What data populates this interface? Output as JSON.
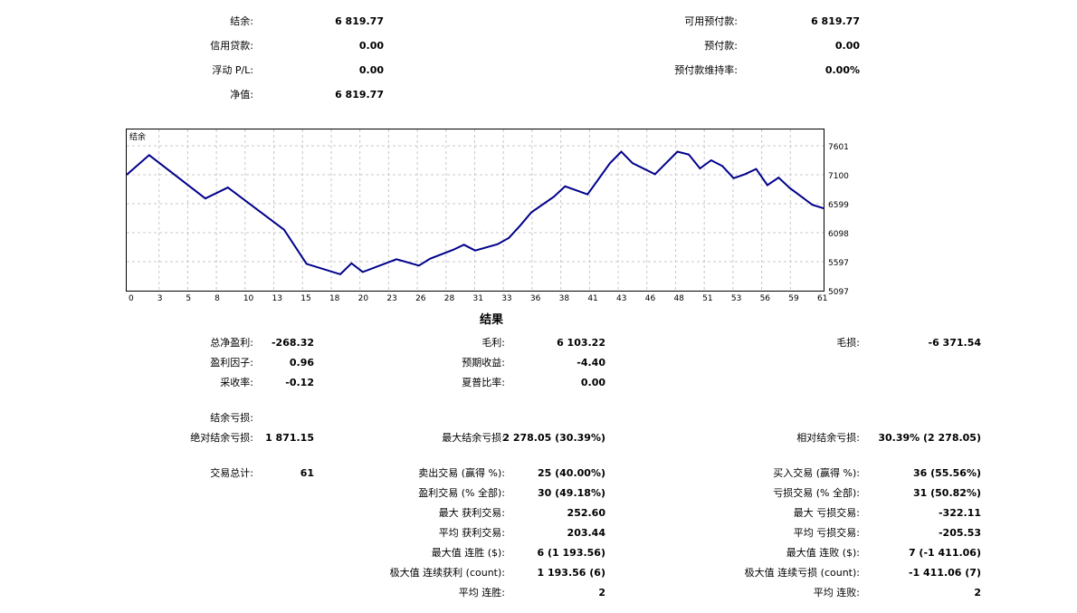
{
  "summary": {
    "balance_label": "结余:",
    "balance_value": "6 819.77",
    "credit_label": "信用贷款:",
    "credit_value": "0.00",
    "floating_label": "浮动 P/L:",
    "floating_value": "0.00",
    "equity_label": "净值:",
    "equity_value": "6 819.77",
    "free_margin_label": "可用预付款:",
    "free_margin_value": "6 819.77",
    "margin_label": "预付款:",
    "margin_value": "0.00",
    "margin_level_label": "预付款维持率:",
    "margin_level_value": "0.00%"
  },
  "chart_data": {
    "type": "line",
    "title": "结余",
    "x_ticks": [
      "0",
      "3",
      "5",
      "8",
      "10",
      "13",
      "15",
      "18",
      "20",
      "23",
      "26",
      "28",
      "31",
      "33",
      "36",
      "38",
      "41",
      "43",
      "46",
      "48",
      "51",
      "53",
      "56",
      "59",
      "61"
    ],
    "y_ticks": [
      "7601",
      "7100",
      "6599",
      "6098",
      "5597",
      "5097"
    ],
    "ylim": [
      5097,
      7601
    ],
    "xlim": [
      0,
      62
    ],
    "grid": true,
    "line_color": "#00008b",
    "x": [
      0,
      2,
      7,
      9,
      14,
      16,
      19,
      20,
      21,
      24,
      26,
      27,
      29,
      30,
      31,
      33,
      34,
      35,
      36,
      38,
      39,
      41,
      43,
      44,
      45,
      47,
      49,
      50,
      51,
      52,
      53,
      54,
      55,
      56,
      57,
      58,
      59,
      61,
      63
    ],
    "y": [
      7100,
      7440,
      6690,
      6880,
      6150,
      5560,
      5380,
      5570,
      5420,
      5640,
      5530,
      5650,
      5800,
      5890,
      5790,
      5900,
      6010,
      6220,
      6450,
      6720,
      6900,
      6760,
      7300,
      7500,
      7300,
      7110,
      7500,
      7450,
      7210,
      7350,
      7250,
      7040,
      7110,
      7200,
      6920,
      7050,
      6870,
      6580,
      6520
    ]
  },
  "results": {
    "title": "结果",
    "net_profit_label": "总净盈利:",
    "net_profit_value": "-268.32",
    "gross_profit_label": "毛利:",
    "gross_profit_value": "6 103.22",
    "gross_loss_label": "毛损:",
    "gross_loss_value": "-6 371.54",
    "profit_factor_label": "盈利因子:",
    "profit_factor_value": "0.96",
    "expected_payoff_label": "预期收益:",
    "expected_payoff_value": "-4.40",
    "recovery_factor_label": "采收率:",
    "recovery_factor_value": "-0.12",
    "sharpe_label": "夏普比率:",
    "sharpe_value": "0.00",
    "balance_drawdown_label": "结余亏损:",
    "abs_drawdown_label": "绝对结余亏损:",
    "abs_drawdown_value": "1 871.15",
    "max_drawdown_label": "最大结余亏损:",
    "max_drawdown_value": "2 278.05 (30.39%)",
    "rel_drawdown_label": "相对结余亏损:",
    "rel_drawdown_value": "30.39% (2 278.05)",
    "total_trades_label": "交易总计:",
    "total_trades_value": "61",
    "short_trades_label": "卖出交易 (赢得 %):",
    "short_trades_value": "25 (40.00%)",
    "long_trades_label": "买入交易 (赢得 %):",
    "long_trades_value": "36 (55.56%)",
    "profit_trades_label": "盈利交易 (% 全部):",
    "profit_trades_value": "30 (49.18%)",
    "loss_trades_label": "亏损交易 (% 全部):",
    "loss_trades_value": "31 (50.82%)",
    "largest_profit_label": "最大 获利交易:",
    "largest_profit_value": "252.60",
    "largest_loss_label": "最大 亏损交易:",
    "largest_loss_value": "-322.11",
    "avg_profit_label": "平均 获利交易:",
    "avg_profit_value": "203.44",
    "avg_loss_label": "平均 亏损交易:",
    "avg_loss_value": "-205.53",
    "max_consec_wins_label": "最大值 连胜 ($):",
    "max_consec_wins_value": "6 (1 193.56)",
    "max_consec_losses_label": "最大值 连败 ($):",
    "max_consec_losses_value": "7 (-1 411.06)",
    "max_consec_profit_label": "极大值 连续获利 (count):",
    "max_consec_profit_value": "1 193.56 (6)",
    "max_consec_loss_label": "极大值 连续亏损 (count):",
    "max_consec_loss_value": "-1 411.06 (7)",
    "avg_consec_wins_label": "平均 连胜:",
    "avg_consec_wins_value": "2",
    "avg_consec_losses_label": "平均 连败:",
    "avg_consec_losses_value": "2"
  }
}
